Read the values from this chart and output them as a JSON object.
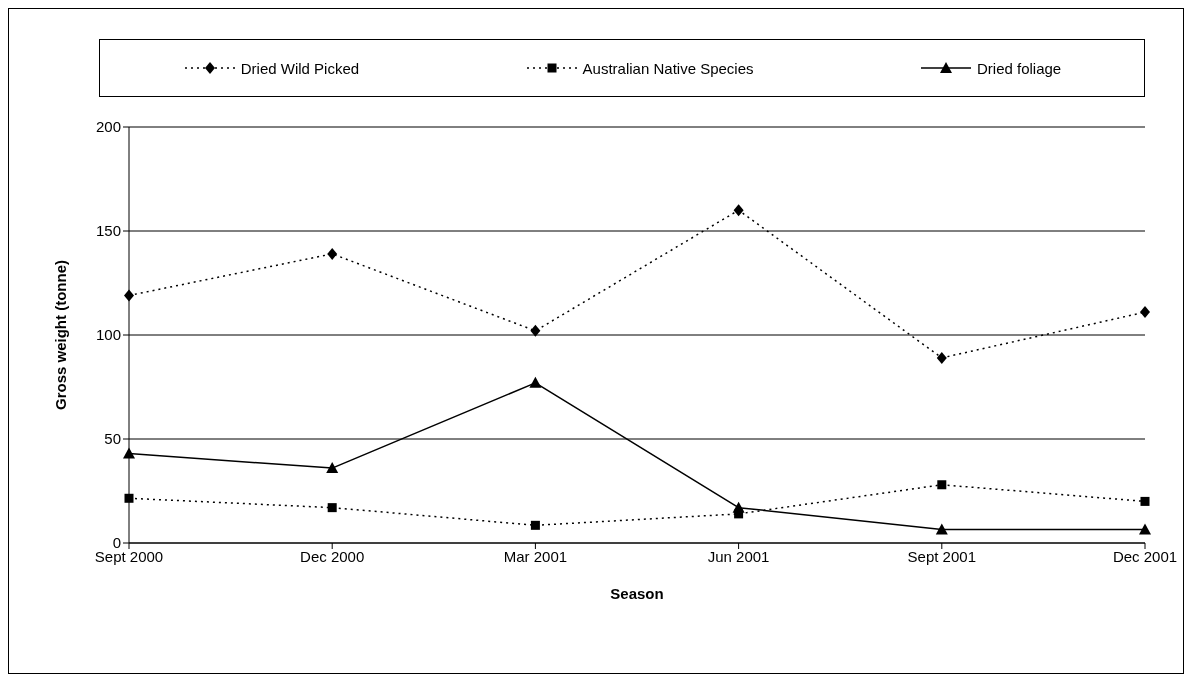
{
  "chart_data": {
    "type": "line",
    "xlabel": "Season",
    "ylabel": "Gross weight (tonne)",
    "categories": [
      "Sept 2000",
      "Dec 2000",
      "Mar 2001",
      "Jun 2001",
      "Sept 2001",
      "Dec 2001"
    ],
    "series": [
      {
        "name": "Dried Wild Picked",
        "color": "#000000",
        "marker": "diamond",
        "line_style": "dotted",
        "values": [
          119,
          139,
          102,
          160,
          89,
          111
        ]
      },
      {
        "name": "Australian Native Species",
        "color": "#000000",
        "marker": "square",
        "line_style": "dotted",
        "values": [
          21.5,
          17,
          8.5,
          14,
          28,
          20
        ]
      },
      {
        "name": "Dried foliage",
        "color": "#000000",
        "marker": "triangle",
        "line_style": "solid",
        "values": [
          43,
          36,
          77,
          17,
          6.5,
          6.5
        ]
      }
    ],
    "ylim": [
      0,
      200
    ],
    "yticks": [
      0,
      50,
      100,
      150,
      200
    ],
    "grid": "y",
    "legend": "top"
  }
}
